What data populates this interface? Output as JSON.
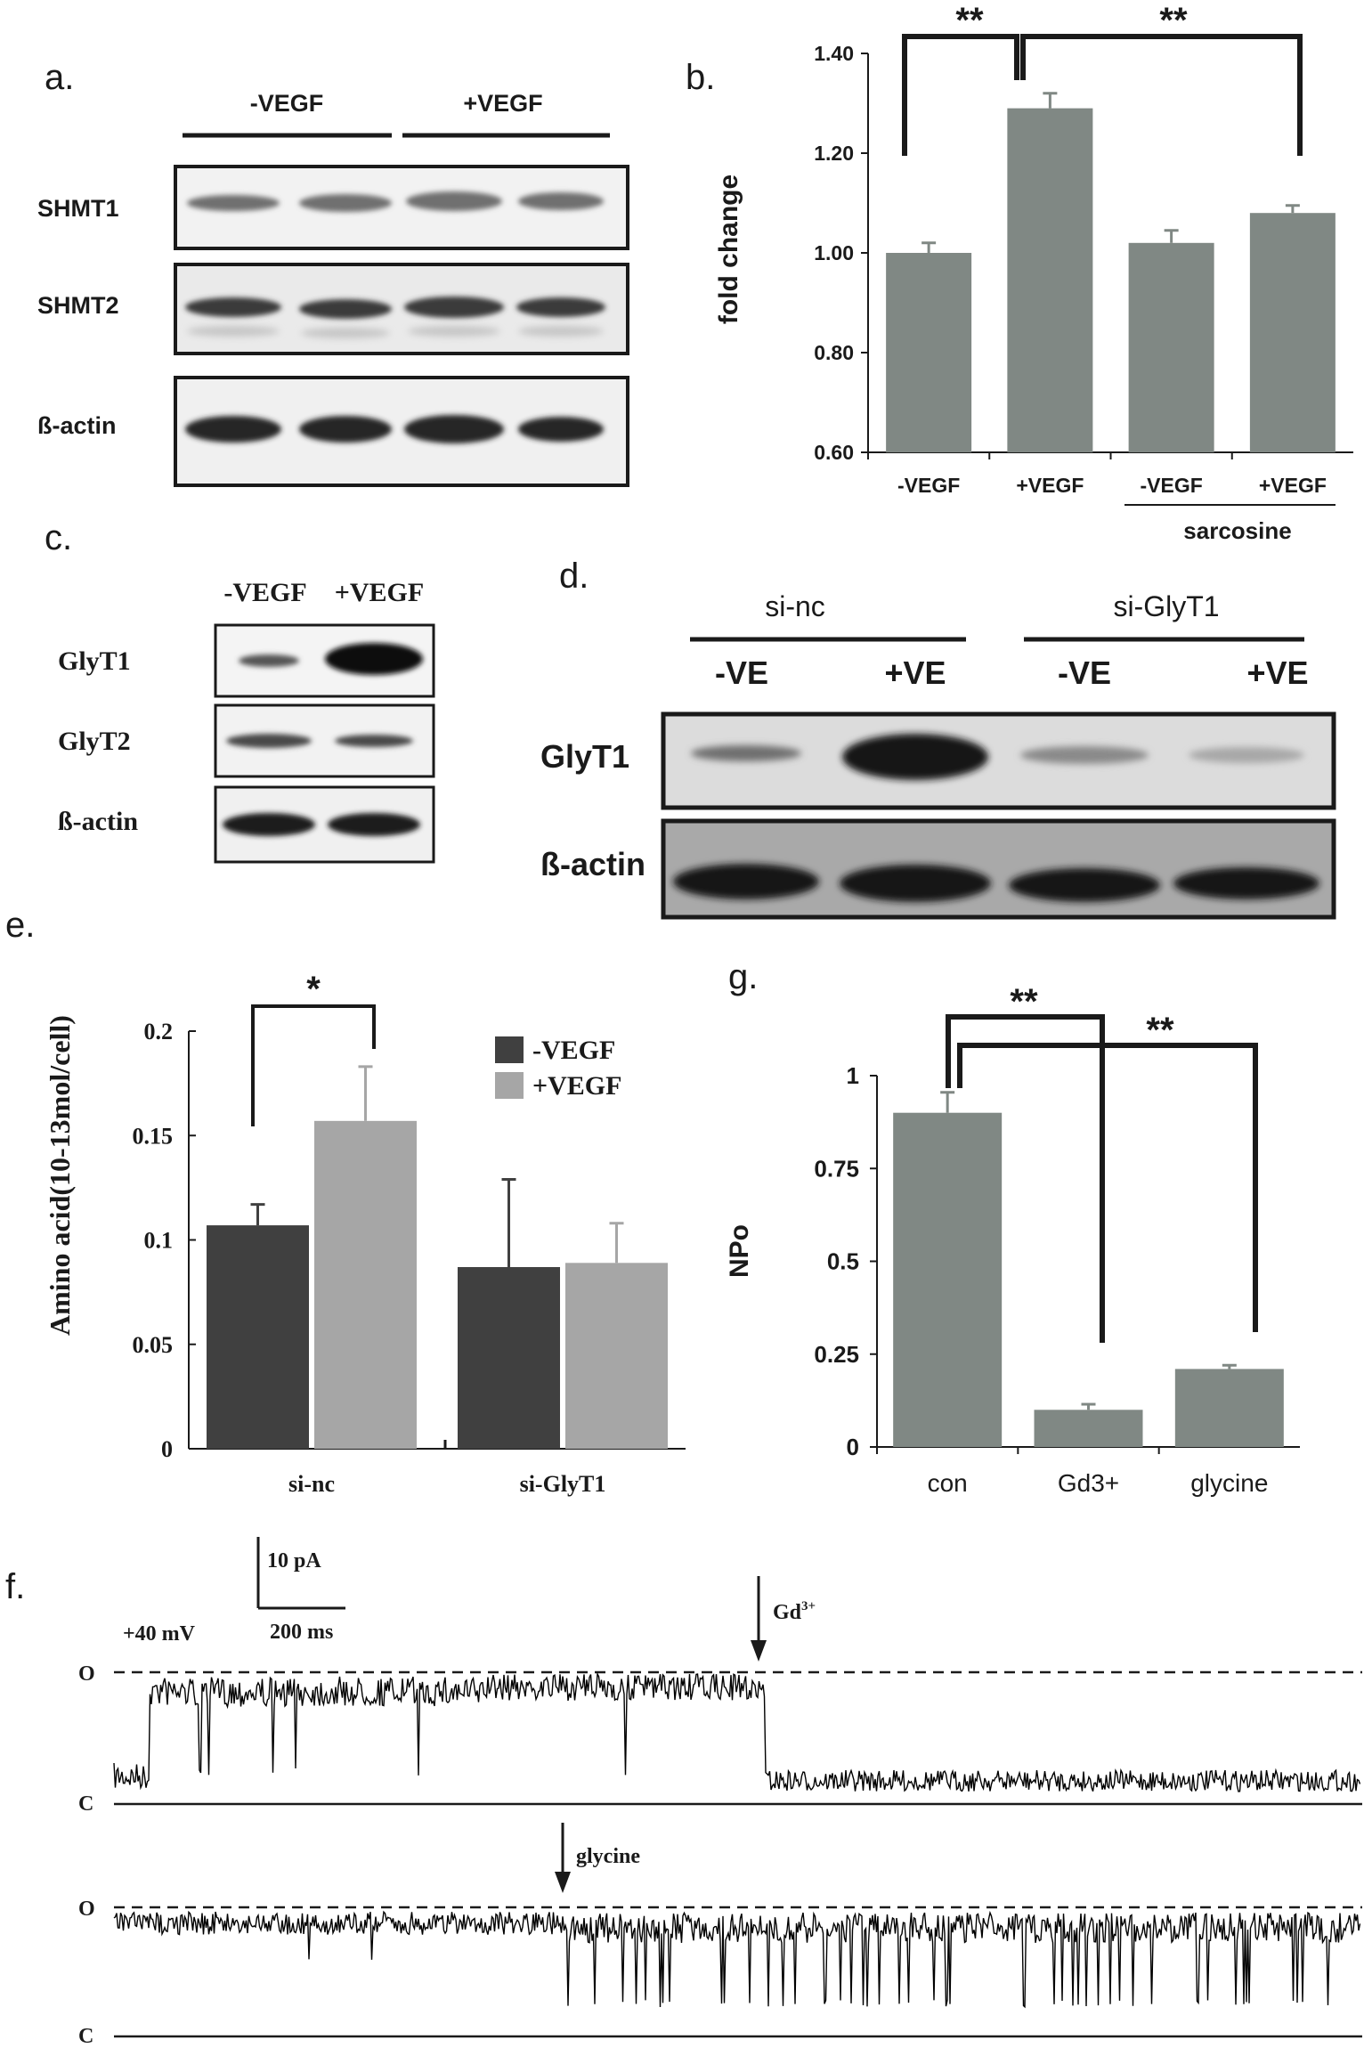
{
  "panels": {
    "a": {
      "letter": "a.",
      "groups": [
        "-VEGF",
        "+VEGF"
      ],
      "rows": [
        "SHMT1",
        "SHMT2",
        "ß-actin"
      ]
    },
    "b": {
      "letter": "b.",
      "significance": [
        "**",
        "**"
      ],
      "group_label": "sarcosine"
    },
    "c": {
      "letter": "c.",
      "columns": [
        "-VEGF",
        "+VEGF"
      ],
      "rows": [
        "GlyT1",
        "GlyT2",
        "ß-actin"
      ]
    },
    "d": {
      "letter": "d.",
      "groups": [
        "si-nc",
        "si-GlyT1"
      ],
      "lanes": [
        "-VE",
        "+VE",
        "-VE",
        "+VE"
      ],
      "rows": [
        "GlyT1",
        "ß-actin"
      ]
    },
    "e": {
      "letter": "e.",
      "significance": [
        "*"
      ]
    },
    "f": {
      "letter": "f.",
      "scale_current": "10 pA",
      "scale_time": "200 ms",
      "voltage": "+40 mV",
      "open_label": "O",
      "closed_label": "C",
      "arrow1_label_base": "Gd",
      "arrow1_label_sup": "3+",
      "arrow2_label": "glycine"
    },
    "g": {
      "letter": "g.",
      "significance": [
        "**",
        "**"
      ]
    }
  },
  "chart_data": [
    {
      "id": "b",
      "type": "bar",
      "categories": [
        "-VEGF",
        "+VEGF",
        "-VEGF",
        "+VEGF"
      ],
      "values": [
        1.0,
        1.29,
        1.02,
        1.08
      ],
      "errors": [
        0.02,
        0.03,
        0.025,
        0.015
      ],
      "ylabel": "fold change",
      "ylim": [
        0.6,
        1.4
      ],
      "yticks": [
        "0.60",
        "0.80",
        "1.00",
        "1.20",
        "1.40"
      ],
      "bar_color": "#808884",
      "grid": false
    },
    {
      "id": "e",
      "type": "bar",
      "categories": [
        "si-nc",
        "si-GlyT1"
      ],
      "series": [
        {
          "name": "-VEGF",
          "values": [
            0.107,
            0.087
          ],
          "errors": [
            0.01,
            0.042
          ],
          "color": "#404040"
        },
        {
          "name": "+VEGF",
          "values": [
            0.157,
            0.089
          ],
          "errors": [
            0.026,
            0.019
          ],
          "color": "#a6a6a6"
        }
      ],
      "ylabel": "Amino acid(10-13mol/cell)",
      "ylim": [
        0,
        0.2
      ],
      "yticks": [
        "0",
        "0.05",
        "0.1",
        "0.15",
        "0.2"
      ],
      "legend": "top-right",
      "grid": false
    },
    {
      "id": "g",
      "type": "bar",
      "categories": [
        "con",
        "Gd3+",
        "glycine"
      ],
      "values": [
        0.9,
        0.1,
        0.21
      ],
      "errors": [
        0.055,
        0.015,
        0.01
      ],
      "ylabel": "NPo",
      "ylim": [
        0,
        1
      ],
      "yticks": [
        "0",
        "0.25",
        "0.5",
        "0.75",
        "1"
      ],
      "bar_color": "#808884",
      "grid": false
    }
  ]
}
